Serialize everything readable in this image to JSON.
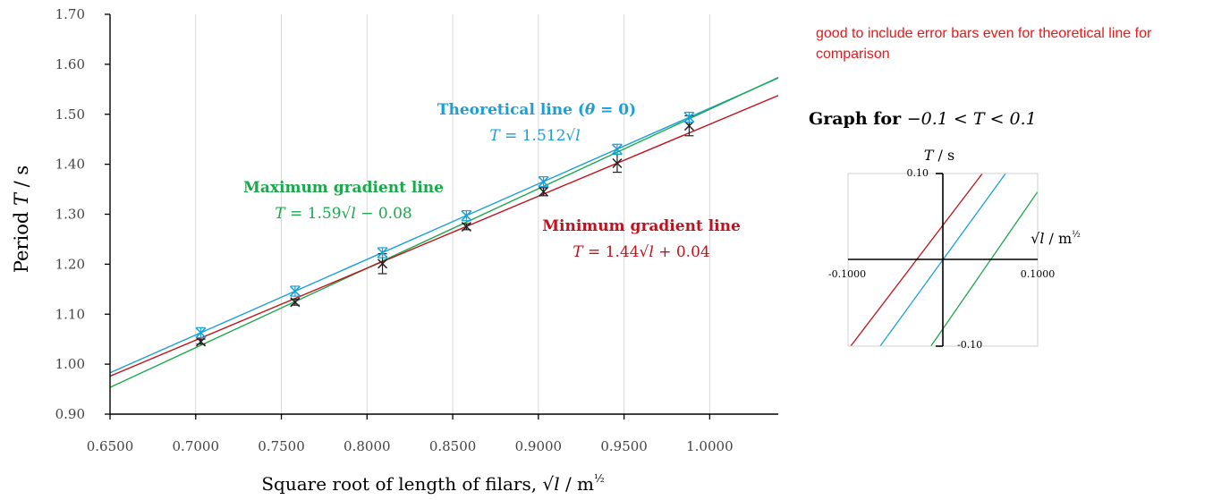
{
  "chart_data": [
    {
      "type": "scatter",
      "ylabel": "Period T / s",
      "xlabel": "Square root of length of filars, √l / m^½",
      "xlim": [
        0.65,
        1.04
      ],
      "ylim": [
        0.9,
        1.7
      ],
      "x_ticks": [
        "0.6500",
        "0.7000",
        "0.7500",
        "0.8000",
        "0.8500",
        "0.9000",
        "0.9500",
        "1.0000"
      ],
      "y_ticks": [
        "0.90",
        "1.00",
        "1.10",
        "1.20",
        "1.30",
        "1.40",
        "1.50",
        "1.60",
        "1.70"
      ],
      "grid": "vertical",
      "series": [
        {
          "name": "Theoretical line (θ = 0)",
          "equation": "T = 1.512√l",
          "color": "#1a9fd8",
          "slope": 1.512,
          "intercept": 0,
          "x": [
            0.703,
            0.758,
            0.809,
            0.858,
            0.903,
            0.946,
            0.988
          ],
          "y": [
            1.063,
            1.146,
            1.223,
            1.297,
            1.365,
            1.43,
            1.494
          ],
          "error": 0.01
        },
        {
          "name": "Maximum gradient line",
          "equation": "T = 1.59√l − 0.08",
          "color": "#1aa84b",
          "slope": 1.59,
          "intercept": -0.08
        },
        {
          "name": "Minimum gradient line",
          "equation": "T = 1.44√l + 0.04",
          "color": "#c0121c",
          "slope": 1.44,
          "intercept": 0.04
        },
        {
          "type": "measured",
          "color": "#222222",
          "x": [
            0.703,
            0.758,
            0.809,
            0.858,
            0.903,
            0.946,
            0.988
          ],
          "y": [
            1.045,
            1.124,
            1.201,
            1.275,
            1.345,
            1.402,
            1.477
          ],
          "error": [
            0.005,
            0.006,
            0.02,
            0.006,
            0.008,
            0.018,
            0.02
          ]
        }
      ]
    },
    {
      "type": "line",
      "title": "Graph for −0.1 < T < 0.1",
      "ylabel": "T / s",
      "xlabel": "√l / m^½",
      "xlim": [
        -0.1,
        0.1
      ],
      "ylim": [
        -0.1,
        0.1
      ],
      "x_tick_labels": [
        "-0.1000",
        "0.1000"
      ],
      "y_tick_labels": [
        "0.10",
        "-0.10"
      ]
    }
  ],
  "annotation_note": "good to include error bars even for theoretical line for comparison",
  "inset_title": {
    "bold": "Graph for ",
    "math": "−0.1 < T < 0.1"
  }
}
